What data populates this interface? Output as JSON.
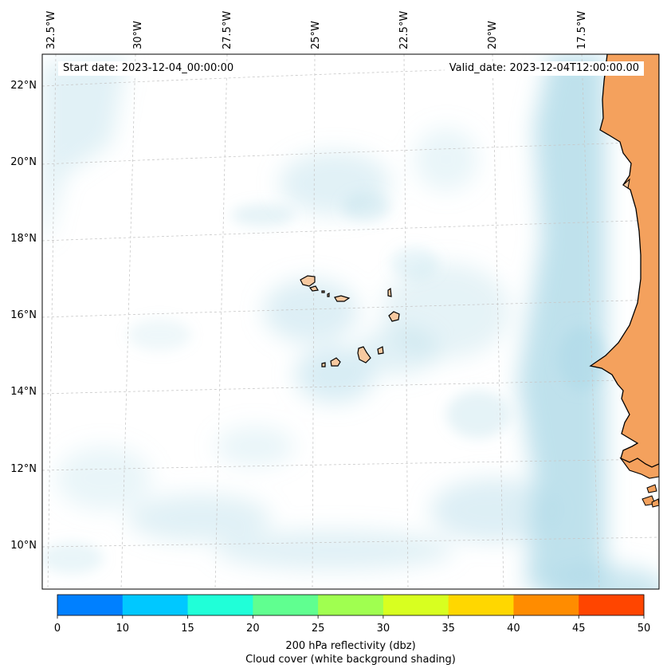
{
  "map": {
    "start_date": "Start date: 2023-12-04_00:00:00",
    "valid_date": "Valid_date: 2023-12-04T12:00:00.00",
    "lon_labels": [
      "32.5°W",
      "30°W",
      "27.5°W",
      "25°W",
      "22.5°W",
      "20°W",
      "17.5°W"
    ],
    "lat_labels": [
      "22°N",
      "20°N",
      "18°N",
      "16°N",
      "14°N",
      "12°N",
      "10°N"
    ],
    "colors": {
      "land": "#f4a15d",
      "island_land": "#f7c9a0",
      "cloud": "#a9d7e6",
      "coastline": "#000000",
      "gridline": "#c8c8c8"
    }
  },
  "colorbar": {
    "ticks": [
      "0",
      "10",
      "15",
      "20",
      "25",
      "30",
      "35",
      "40",
      "45",
      "50"
    ],
    "colors": [
      "#0080ff",
      "#00c8ff",
      "#20ffd8",
      "#60ff90",
      "#a0ff50",
      "#d8ff20",
      "#ffd700",
      "#ff8c00",
      "#ff4500"
    ],
    "label_line1": "200 hPa reflectivity (dbz)",
    "label_line2": "Cloud cover (white background shading)"
  }
}
